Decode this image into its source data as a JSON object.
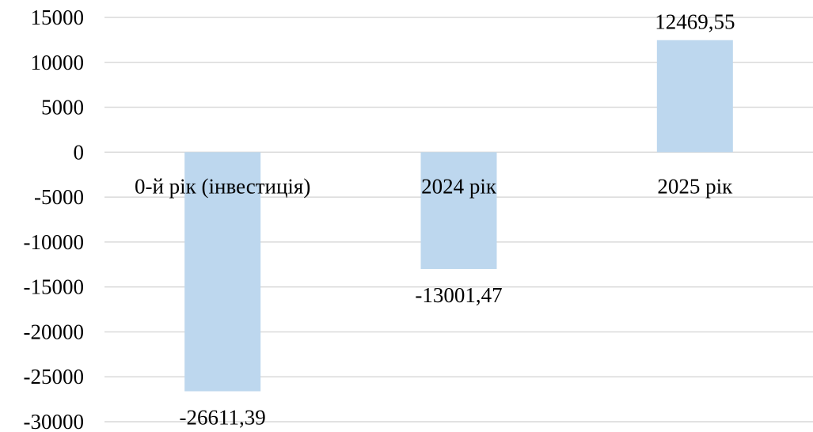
{
  "chart_data": {
    "type": "bar",
    "categories": [
      "0-й рік (інвестиція)",
      "2024 рік",
      "2025 рік"
    ],
    "values": [
      -26611.39,
      -13001.47,
      12469.55
    ],
    "data_labels": [
      "-26611,39",
      "-13001,47",
      "12469,55"
    ],
    "ylim": [
      -30000,
      15000
    ],
    "yticks": [
      15000,
      10000,
      5000,
      0,
      -5000,
      -10000,
      -15000,
      -20000,
      -25000,
      -30000
    ],
    "ytick_labels": [
      "15000",
      "10000",
      "5000",
      "0",
      "-5000",
      "-10000",
      "-15000",
      "-20000",
      "-25000",
      "-30000"
    ],
    "grid": true,
    "legend": "none",
    "bar_color": "#bdd7ee",
    "title": "",
    "xlabel": "",
    "ylabel": ""
  }
}
